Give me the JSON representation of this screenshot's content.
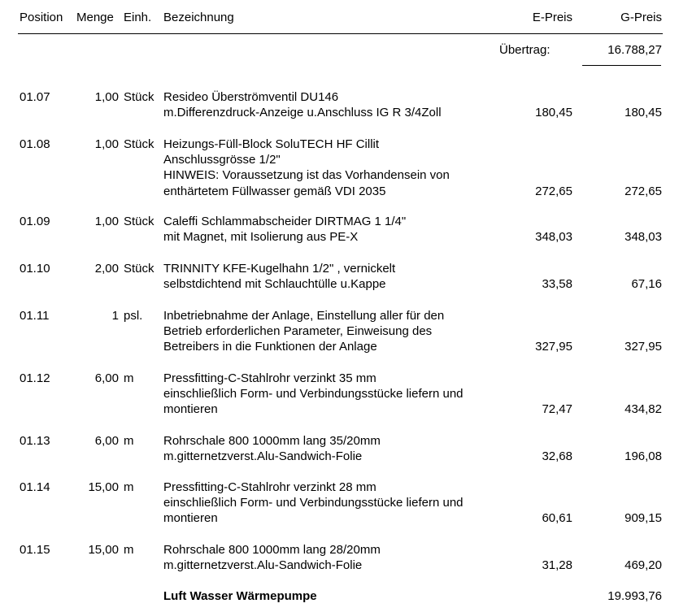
{
  "header": {
    "position": "Position",
    "menge": "Menge",
    "einheit": "Einh.",
    "bezeichnung": "Bezeichnung",
    "epreis": "E-Preis",
    "gpreis": "G-Preis"
  },
  "uebertrag": {
    "label": "Übertrag:",
    "value": "16.788,27"
  },
  "items": [
    {
      "pos": "01.07",
      "menge": "1,00",
      "einheit": "Stück",
      "lines": [
        "Resideo Überströmventil DU146",
        "m.Differenzdruck-Anzeige u.Anschluss IG R 3/4Zoll"
      ],
      "epreis": "180,45",
      "gpreis": "180,45"
    },
    {
      "pos": "01.08",
      "menge": "1,00",
      "einheit": "Stück",
      "lines": [
        "Heizungs-Füll-Block SoluTECH HF Cillit",
        "Anschlussgrösse 1/2\"",
        "HINWEIS: Voraussetzung ist das Vorhandensein von",
        "enthärtetem Füllwasser gemäß VDI 2035"
      ],
      "epreis": "272,65",
      "gpreis": "272,65"
    },
    {
      "pos": "01.09",
      "menge": "1,00",
      "einheit": "Stück",
      "lines": [
        "Caleffi Schlammabscheider DIRTMAG 1 1/4\"",
        "mit Magnet, mit Isolierung aus PE-X"
      ],
      "epreis": "348,03",
      "gpreis": "348,03"
    },
    {
      "pos": "01.10",
      "menge": "2,00",
      "einheit": "Stück",
      "lines": [
        "TRINNITY KFE-Kugelhahn 1/2\" , vernickelt",
        "selbstdichtend mit Schlauchtülle u.Kappe"
      ],
      "epreis": "33,58",
      "gpreis": "67,16"
    },
    {
      "pos": "01.11",
      "menge": "1",
      "einheit": "psl.",
      "lines": [
        "Inbetriebnahme der Anlage, Einstellung aller für den",
        "Betrieb erforderlichen Parameter, Einweisung des",
        "Betreibers in die Funktionen der Anlage"
      ],
      "epreis": "327,95",
      "gpreis": "327,95"
    },
    {
      "pos": "01.12",
      "menge": "6,00",
      "einheit": "m",
      "lines": [
        "Pressfitting-C-Stahlrohr verzinkt 35 mm",
        "einschließlich Form- und Verbindungsstücke liefern und",
        "montieren"
      ],
      "epreis": "72,47",
      "gpreis": "434,82"
    },
    {
      "pos": "01.13",
      "menge": "6,00",
      "einheit": "m",
      "lines": [
        "Rohrschale 800 1000mm lang   35/20mm",
        "m.gitternetzverst.Alu-Sandwich-Folie"
      ],
      "epreis": "32,68",
      "gpreis": "196,08"
    },
    {
      "pos": "01.14",
      "menge": "15,00",
      "einheit": "m",
      "lines": [
        "Pressfitting-C-Stahlrohr verzinkt 28 mm",
        "einschließlich Form- und Verbindungsstücke liefern und",
        "montieren"
      ],
      "epreis": "60,61",
      "gpreis": "909,15"
    },
    {
      "pos": "01.15",
      "menge": "15,00",
      "einheit": "m",
      "lines": [
        "Rohrschale 800 1000mm lang   28/20mm",
        "m.gitternetzverst.Alu-Sandwich-Folie"
      ],
      "epreis": "31,28",
      "gpreis": "469,20"
    }
  ],
  "total": {
    "label": "Luft Wasser Wärmepumpe",
    "value": "19.993,76"
  }
}
